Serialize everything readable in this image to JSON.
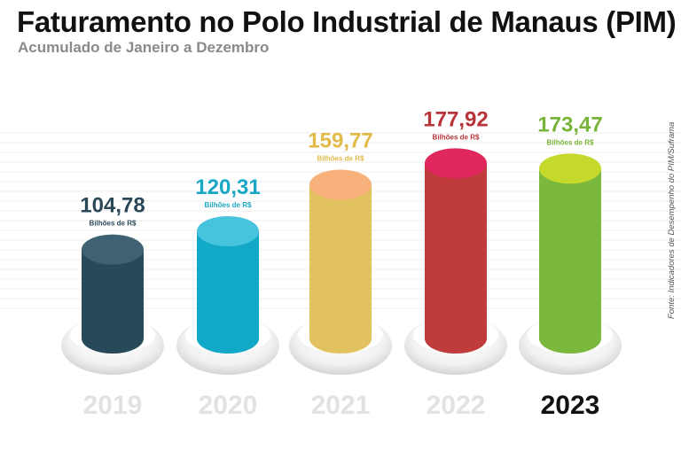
{
  "chart_data": {
    "type": "bar",
    "title": "Faturamento no Polo Industrial de Manaus (PIM)",
    "subtitle": "Acumulado de Janeiro a Dezembro",
    "source": "Fonte: Indicadores de Desempenho do PIM/Suframa",
    "unit_label": "Bilhões de R$",
    "categories": [
      "2019",
      "2020",
      "2021",
      "2022",
      "2023"
    ],
    "values": [
      104.78,
      120.31,
      159.77,
      177.92,
      173.47
    ],
    "value_labels": [
      "104,78",
      "120,31",
      "159,77",
      "177,92",
      "173,47"
    ],
    "colors": {
      "body": [
        "#274a5b",
        "#12a9c8",
        "#e2c25f",
        "#bf3b3c",
        "#7bb83e"
      ],
      "top": [
        "#3e6272",
        "#46c4dd",
        "#f8b17a",
        "#e0285e",
        "#c4d92c"
      ],
      "label": [
        "#2b4858",
        "#18a8c6",
        "#e2ba48",
        "#b93438",
        "#78b43a"
      ],
      "year": [
        "#e2e2e2",
        "#e2e2e2",
        "#e2e2e2",
        "#e2e2e2",
        "#111111"
      ]
    },
    "grid": false,
    "legend": "none"
  }
}
